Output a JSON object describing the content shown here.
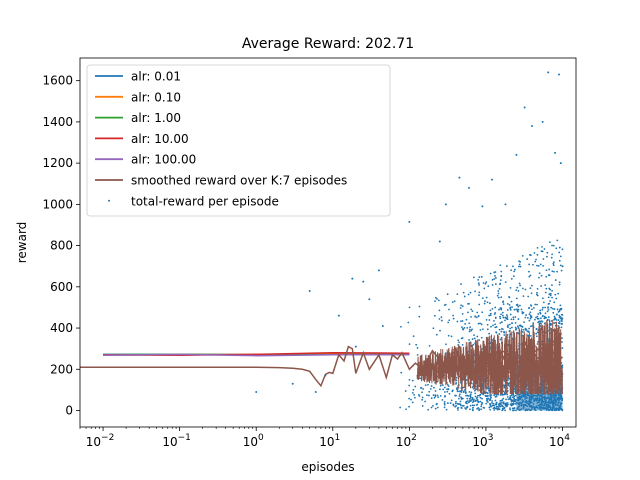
{
  "chart_data": {
    "type": "line",
    "title": "Average Reward: 202.71",
    "xlabel": "episodes",
    "ylabel": "reward",
    "x_scale": "log",
    "xlim": [
      0.005,
      15000
    ],
    "ylim": [
      -80,
      1710
    ],
    "x_ticks": [
      {
        "value": 0.01,
        "base": "10",
        "exp": "−2"
      },
      {
        "value": 0.1,
        "base": "10",
        "exp": "−1"
      },
      {
        "value": 1,
        "base": "10",
        "exp": "0"
      },
      {
        "value": 10,
        "base": "10",
        "exp": "1"
      },
      {
        "value": 100,
        "base": "10",
        "exp": "2"
      },
      {
        "value": 1000,
        "base": "10",
        "exp": "3"
      },
      {
        "value": 10000,
        "base": "10",
        "exp": "4"
      }
    ],
    "y_ticks": [
      0,
      200,
      400,
      600,
      800,
      1000,
      1200,
      1400,
      1600
    ],
    "legend_position": "top-left",
    "series": [
      {
        "name": "alr: 0.01",
        "kind": "line",
        "color": "#1f77b4",
        "x": [
          0.01,
          0.1,
          1,
          10,
          100
        ],
        "y": [
          272,
          273,
          271,
          272,
          271
        ]
      },
      {
        "name": "alr: 0.10",
        "kind": "line",
        "color": "#ff7f0e",
        "x": [
          0.01,
          0.1,
          1,
          10,
          100
        ],
        "y": [
          270,
          271,
          272,
          273,
          272
        ]
      },
      {
        "name": "alr: 1.00",
        "kind": "line",
        "color": "#2ca02c",
        "x": [
          0.01,
          0.1,
          1,
          10,
          100
        ],
        "y": [
          271,
          272,
          270,
          271,
          273
        ]
      },
      {
        "name": "alr: 10.00",
        "kind": "line",
        "color": "#d62728",
        "x": [
          0.01,
          0.1,
          1,
          10,
          100
        ],
        "y": [
          270,
          268,
          272,
          280,
          278
        ]
      },
      {
        "name": "alr: 100.00",
        "kind": "line",
        "color": "#9467bd",
        "x": [
          0.01,
          0.1,
          1,
          10,
          100
        ],
        "y": [
          268,
          272,
          266,
          270,
          271
        ]
      },
      {
        "name": "smoothed reward over K:7 episodes",
        "kind": "line",
        "color": "#8c564b",
        "x": [
          0.005,
          0.1,
          1,
          2,
          3,
          4,
          5,
          6,
          7,
          8,
          9,
          10,
          12,
          14,
          16,
          18,
          20,
          25,
          30,
          40,
          50,
          60,
          70,
          80,
          100,
          120,
          150,
          200,
          300,
          400,
          500,
          700,
          1000,
          1500,
          2000,
          3000,
          5000,
          7000,
          10000
        ],
        "y": [
          210,
          210,
          210,
          208,
          205,
          200,
          190,
          150,
          120,
          175,
          185,
          180,
          270,
          240,
          310,
          300,
          180,
          280,
          200,
          270,
          160,
          270,
          250,
          280,
          200,
          230,
          200,
          290,
          210,
          300,
          210,
          240,
          220,
          300,
          200,
          250,
          300,
          200,
          260
        ]
      },
      {
        "name": "total-reward per episode",
        "kind": "scatter",
        "color": "#1f77b4",
        "x": [
          1,
          3,
          5,
          6,
          8,
          12,
          18,
          20,
          25,
          30,
          40,
          45,
          100,
          250,
          300,
          450,
          600,
          900,
          1200,
          1800,
          2500,
          3200,
          4000,
          5500,
          6500,
          8000,
          9000,
          9500,
          10000
        ],
        "y": [
          90,
          130,
          580,
          90,
          170,
          460,
          640,
          310,
          625,
          540,
          680,
          410,
          915,
          820,
          1000,
          1130,
          1080,
          990,
          1120,
          1000,
          1240,
          1470,
          1380,
          1400,
          1640,
          1250,
          1630,
          1200,
          700
        ]
      }
    ]
  }
}
